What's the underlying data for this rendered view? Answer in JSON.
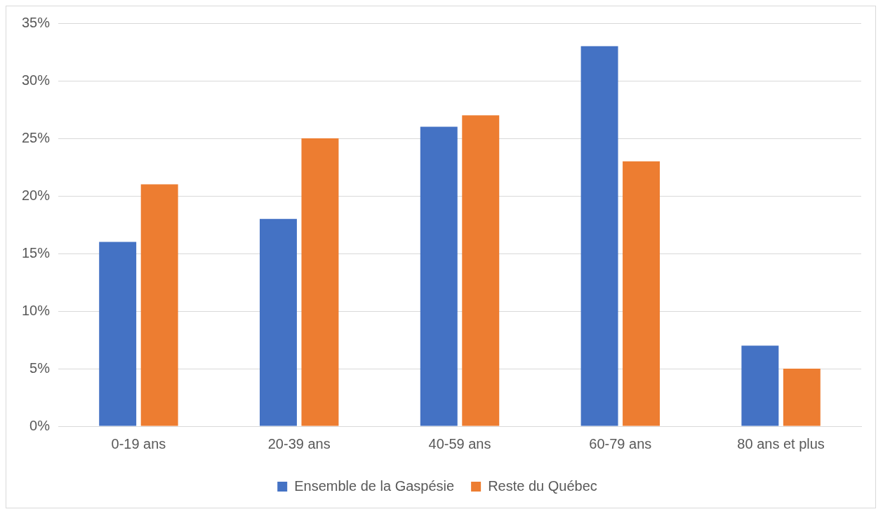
{
  "chart_data": {
    "type": "bar",
    "categories": [
      "0-19 ans",
      "20-39 ans",
      "40-59 ans",
      "60-79 ans",
      "80 ans et plus"
    ],
    "series": [
      {
        "name": "Ensemble de la Gaspésie",
        "color": "#4472c4",
        "values": [
          16,
          18,
          26,
          33,
          7
        ]
      },
      {
        "name": "Reste du Québec",
        "color": "#ed7d31",
        "values": [
          21,
          25,
          27,
          23,
          5
        ]
      }
    ],
    "ylim": [
      0,
      35
    ],
    "yticks": [
      {
        "value": 0,
        "label": "0%"
      },
      {
        "value": 5,
        "label": "5%"
      },
      {
        "value": 10,
        "label": "10%"
      },
      {
        "value": 15,
        "label": "15%"
      },
      {
        "value": 20,
        "label": "20%"
      },
      {
        "value": 25,
        "label": "25%"
      },
      {
        "value": 30,
        "label": "30%"
      },
      {
        "value": 35,
        "label": "35%"
      }
    ],
    "grid": "y",
    "legend": "bottom"
  }
}
